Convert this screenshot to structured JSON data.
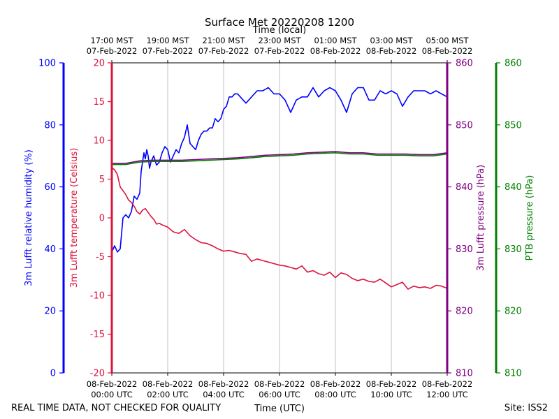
{
  "chart_data": {
    "type": "line",
    "title": "Surface Met 20220208 1200",
    "x_top_label": "Time (local)",
    "x_bottom_label": "Time (UTC)",
    "x_range_hours": [
      0,
      12
    ],
    "x_ticks_utc": [
      {
        "h": 0,
        "line1": "08-Feb-2022",
        "line2": "00:00 UTC"
      },
      {
        "h": 2,
        "line1": "08-Feb-2022",
        "line2": "02:00 UTC"
      },
      {
        "h": 4,
        "line1": "08-Feb-2022",
        "line2": "04:00 UTC"
      },
      {
        "h": 6,
        "line1": "08-Feb-2022",
        "line2": "06:00 UTC"
      },
      {
        "h": 8,
        "line1": "08-Feb-2022",
        "line2": "08:00 UTC"
      },
      {
        "h": 10,
        "line1": "08-Feb-2022",
        "line2": "10:00 UTC"
      },
      {
        "h": 12,
        "line1": "08-Feb-2022",
        "line2": "12:00 UTC"
      }
    ],
    "x_ticks_local": [
      {
        "h": 0,
        "line1": "17:00 MST",
        "line2": "07-Feb-2022"
      },
      {
        "h": 2,
        "line1": "19:00 MST",
        "line2": "07-Feb-2022"
      },
      {
        "h": 4,
        "line1": "21:00 MST",
        "line2": "07-Feb-2022"
      },
      {
        "h": 6,
        "line1": "23:00 MST",
        "line2": "07-Feb-2022"
      },
      {
        "h": 8,
        "line1": "01:00 MST",
        "line2": "08-Feb-2022"
      },
      {
        "h": 10,
        "line1": "03:00 MST",
        "line2": "08-Feb-2022"
      },
      {
        "h": 12,
        "line1": "05:00 MST",
        "line2": "08-Feb-2022"
      }
    ],
    "grid": "vertical",
    "axes": [
      {
        "key": "rh",
        "label": "3m Lufft relative humidity (%)",
        "color": "#0000ff",
        "range": [
          0,
          100
        ],
        "ticks": [
          0,
          20,
          40,
          60,
          80,
          100
        ]
      },
      {
        "key": "temp",
        "label": "3m Lufft temperature (Celsius)",
        "color": "#dc143c",
        "range": [
          -20,
          20
        ],
        "ticks": [
          -20,
          -15,
          -10,
          -5,
          0,
          5,
          10,
          15,
          20
        ]
      },
      {
        "key": "press",
        "label": "3m Lufft pressure (hPa)",
        "color": "#800080",
        "range": [
          810,
          860
        ],
        "ticks": [
          810,
          820,
          830,
          840,
          850,
          860
        ]
      },
      {
        "key": "ptb",
        "label": "PTB pressure (hPa)",
        "color": "#008000",
        "range": [
          810,
          860
        ],
        "ticks": [
          810,
          820,
          830,
          840,
          850,
          860
        ]
      }
    ],
    "series": [
      {
        "axis": "rh",
        "color": "#0000ff",
        "x": [
          0,
          0.1,
          0.2,
          0.3,
          0.4,
          0.5,
          0.6,
          0.7,
          0.8,
          0.9,
          1.0,
          1.05,
          1.1,
          1.15,
          1.2,
          1.25,
          1.3,
          1.35,
          1.4,
          1.5,
          1.6,
          1.7,
          1.8,
          1.9,
          2.0,
          2.1,
          2.2,
          2.3,
          2.4,
          2.5,
          2.6,
          2.7,
          2.8,
          2.9,
          3.0,
          3.1,
          3.2,
          3.3,
          3.4,
          3.5,
          3.6,
          3.7,
          3.8,
          3.9,
          4.0,
          4.1,
          4.2,
          4.3,
          4.4,
          4.5,
          4.6,
          4.7,
          4.8,
          4.9,
          5.0,
          5.2,
          5.4,
          5.6,
          5.8,
          6.0,
          6.2,
          6.4,
          6.6,
          6.8,
          7.0,
          7.2,
          7.4,
          7.6,
          7.8,
          8.0,
          8.2,
          8.4,
          8.6,
          8.8,
          9.0,
          9.2,
          9.4,
          9.6,
          9.8,
          10.0,
          10.2,
          10.4,
          10.6,
          10.8,
          11.0,
          11.2,
          11.4,
          11.6,
          11.8,
          12.0
        ],
        "y": [
          39,
          41,
          39,
          40,
          50,
          51,
          50,
          52,
          57,
          56,
          58,
          65,
          68,
          71,
          69,
          72,
          70,
          66,
          68,
          70,
          67,
          68,
          71,
          73,
          72,
          68,
          70,
          72,
          71,
          74,
          76,
          80,
          74,
          73,
          72,
          75,
          77,
          78,
          78,
          79,
          79,
          82,
          81,
          82,
          85,
          86,
          89,
          89,
          90,
          90,
          89,
          88,
          87,
          88,
          89,
          91,
          91,
          92,
          90,
          90,
          88,
          84,
          88,
          89,
          89,
          92,
          89,
          91,
          92,
          91,
          88,
          84,
          90,
          92,
          92,
          88,
          88,
          91,
          90,
          91,
          90,
          86,
          89,
          91,
          91,
          91,
          90,
          91,
          90,
          89
        ]
      },
      {
        "axis": "temp",
        "color": "#dc143c",
        "x": [
          0,
          0.1,
          0.2,
          0.3,
          0.4,
          0.5,
          0.6,
          0.7,
          0.8,
          0.9,
          1.0,
          1.1,
          1.2,
          1.3,
          1.4,
          1.5,
          1.6,
          1.7,
          1.8,
          2.0,
          2.2,
          2.4,
          2.6,
          2.8,
          3.0,
          3.2,
          3.4,
          3.6,
          3.8,
          4.0,
          4.2,
          4.4,
          4.6,
          4.8,
          5.0,
          5.2,
          5.4,
          5.6,
          5.8,
          6.0,
          6.2,
          6.4,
          6.6,
          6.8,
          7.0,
          7.2,
          7.4,
          7.6,
          7.8,
          8.0,
          8.2,
          8.4,
          8.6,
          8.8,
          9.0,
          9.2,
          9.4,
          9.6,
          9.8,
          10.0,
          10.2,
          10.4,
          10.6,
          10.8,
          11.0,
          11.2,
          11.4,
          11.6,
          11.8,
          12.0
        ],
        "y": [
          6.5,
          6.2,
          5.6,
          4,
          3.5,
          3,
          2.3,
          2,
          1.5,
          0.8,
          0.5,
          1,
          1.2,
          0.7,
          0.2,
          -0.2,
          -0.8,
          -0.7,
          -0.9,
          -1.2,
          -1.8,
          -2,
          -1.5,
          -2.3,
          -2.8,
          -3.2,
          -3.3,
          -3.6,
          -4,
          -4.3,
          -4.2,
          -4.4,
          -4.6,
          -4.7,
          -5.6,
          -5.3,
          -5.5,
          -5.7,
          -5.9,
          -6.1,
          -6.2,
          -6.4,
          -6.6,
          -6.2,
          -7,
          -6.8,
          -7.2,
          -7.4,
          -7.0,
          -7.7,
          -7.1,
          -7.3,
          -7.8,
          -8.1,
          -7.9,
          -8.2,
          -8.3,
          -7.9,
          -8.4,
          -8.9,
          -8.6,
          -8.3,
          -9.2,
          -8.8,
          -9.0,
          -8.9,
          -9.1,
          -8.7,
          -8.8,
          -9.1
        ]
      },
      {
        "axis": "press",
        "color": "#800080",
        "x": [
          0,
          0.5,
          1,
          1.5,
          2,
          2.5,
          3,
          3.5,
          4,
          4.5,
          5,
          5.5,
          6,
          6.5,
          7,
          7.5,
          8,
          8.5,
          9,
          9.5,
          10,
          10.5,
          11,
          11.5,
          12
        ],
        "y": [
          843.8,
          843.8,
          844.2,
          844.3,
          844.3,
          844.3,
          844.4,
          844.5,
          844.6,
          844.7,
          844.9,
          845.1,
          845.2,
          845.3,
          845.5,
          845.6,
          845.7,
          845.5,
          845.5,
          845.3,
          845.3,
          845.3,
          845.2,
          845.2,
          845.5
        ]
      },
      {
        "axis": "ptb",
        "color": "#008000",
        "x": [
          0,
          0.5,
          1,
          1.5,
          2,
          2.5,
          3,
          3.5,
          4,
          4.5,
          5,
          5.5,
          6,
          6.5,
          7,
          7.5,
          8,
          8.5,
          9,
          9.5,
          10,
          10.5,
          11,
          11.5,
          12
        ],
        "y": [
          843.6,
          843.6,
          844,
          844.1,
          844.1,
          844.1,
          844.2,
          844.3,
          844.4,
          844.5,
          844.7,
          844.9,
          845.0,
          845.1,
          845.3,
          845.4,
          845.5,
          845.3,
          845.3,
          845.1,
          845.1,
          845.1,
          845.0,
          845.0,
          845.3
        ]
      }
    ]
  },
  "footer": {
    "disclaimer": "REAL TIME DATA, NOT CHECKED FOR QUALITY",
    "site": "Site: ISS2"
  }
}
